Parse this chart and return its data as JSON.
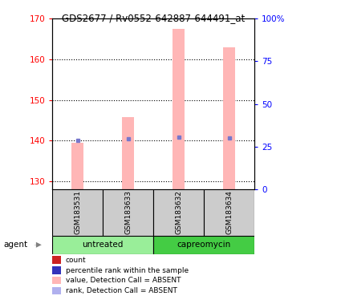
{
  "title": "GDS2677 / Rv0552-642887-644491_at",
  "samples": [
    "GSM183531",
    "GSM183633",
    "GSM183632",
    "GSM183634"
  ],
  "groups": [
    "untreated",
    "untreated",
    "capreomycin",
    "capreomycin"
  ],
  "agent_label": "agent",
  "bar_values": [
    139.5,
    145.8,
    167.5,
    163.0
  ],
  "rank_values": [
    28.5,
    29.5,
    30.5,
    30.0
  ],
  "ylim_left": [
    128,
    170
  ],
  "ylim_right": [
    0,
    100
  ],
  "yticks_left": [
    130,
    140,
    150,
    160,
    170
  ],
  "yticks_right": [
    0,
    25,
    50,
    75,
    100
  ],
  "bar_bottom": 128,
  "bar_color": "#ffb6b6",
  "rank_marker_color": "#7777cc",
  "sample_box_color": "#cccccc",
  "untreated_color": "#99ee99",
  "capreomycin_color": "#44cc44",
  "legend_items": [
    {
      "color": "#cc2222",
      "label": "count"
    },
    {
      "color": "#3333bb",
      "label": "percentile rank within the sample"
    },
    {
      "color": "#ffb6b6",
      "label": "value, Detection Call = ABSENT"
    },
    {
      "color": "#b0b0ee",
      "label": "rank, Detection Call = ABSENT"
    }
  ]
}
